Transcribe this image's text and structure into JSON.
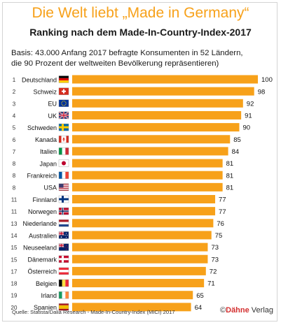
{
  "title": "Die Welt liebt „Made in Germany“",
  "subtitle": "Ranking nach dem Made-In-Country-Index-2017",
  "basis_line1": "Basis: 43.000 Anfang 2017 befragte Konsumenten in 52 Ländern,",
  "basis_line2": "die 90 Prozent der weltweiten Bevölkerung repräsentieren)",
  "source": "Quelle: Statista/Dalia Research - Made-In-Country-Index (MICI) 2017",
  "logo_symbol": "©",
  "logo_bold": "Dähne",
  "logo_rest": " Verlag",
  "colors": {
    "bar": "#f7a11a",
    "title": "#f7a11a"
  },
  "chart_data": {
    "type": "bar",
    "orientation": "horizontal",
    "grid": false,
    "xlim": [
      0,
      100
    ],
    "title": "Die Welt liebt „Made in Germany“",
    "subtitle": "Ranking nach dem Made-In-Country-Index-2017",
    "rows": [
      {
        "rank": "1",
        "country": "Deutschland",
        "value": 100,
        "flag": "de"
      },
      {
        "rank": "2",
        "country": "Schweiz",
        "value": 98,
        "flag": "ch"
      },
      {
        "rank": "3",
        "country": "EU",
        "value": 92,
        "flag": "eu"
      },
      {
        "rank": "4",
        "country": "UK",
        "value": 91,
        "flag": "uk"
      },
      {
        "rank": "5",
        "country": "Schweden",
        "value": 90,
        "flag": "se"
      },
      {
        "rank": "6",
        "country": "Kanada",
        "value": 85,
        "flag": "ca"
      },
      {
        "rank": "7",
        "country": "Italien",
        "value": 84,
        "flag": "it"
      },
      {
        "rank": "8",
        "country": "Japan",
        "value": 81,
        "flag": "jp"
      },
      {
        "rank": "8",
        "country": "Frankreich",
        "value": 81,
        "flag": "fr"
      },
      {
        "rank": "8",
        "country": "USA",
        "value": 81,
        "flag": "us"
      },
      {
        "rank": "11",
        "country": "Finnland",
        "value": 77,
        "flag": "fi"
      },
      {
        "rank": "11",
        "country": "Norwegen",
        "value": 77,
        "flag": "no"
      },
      {
        "rank": "13",
        "country": "Niederlande",
        "value": 76,
        "flag": "nl"
      },
      {
        "rank": "14",
        "country": "Australien",
        "value": 75,
        "flag": "au"
      },
      {
        "rank": "15",
        "country": "Neuseeland",
        "value": 73,
        "flag": "nz"
      },
      {
        "rank": "15",
        "country": "Dänemark",
        "value": 73,
        "flag": "dk"
      },
      {
        "rank": "17",
        "country": "Österreich",
        "value": 72,
        "flag": "at"
      },
      {
        "rank": "18",
        "country": "Belgien",
        "value": 71,
        "flag": "be"
      },
      {
        "rank": "19",
        "country": "Irland",
        "value": 65,
        "flag": "ie"
      },
      {
        "rank": "20",
        "country": "Spanien",
        "value": 64,
        "flag": "es"
      }
    ]
  }
}
